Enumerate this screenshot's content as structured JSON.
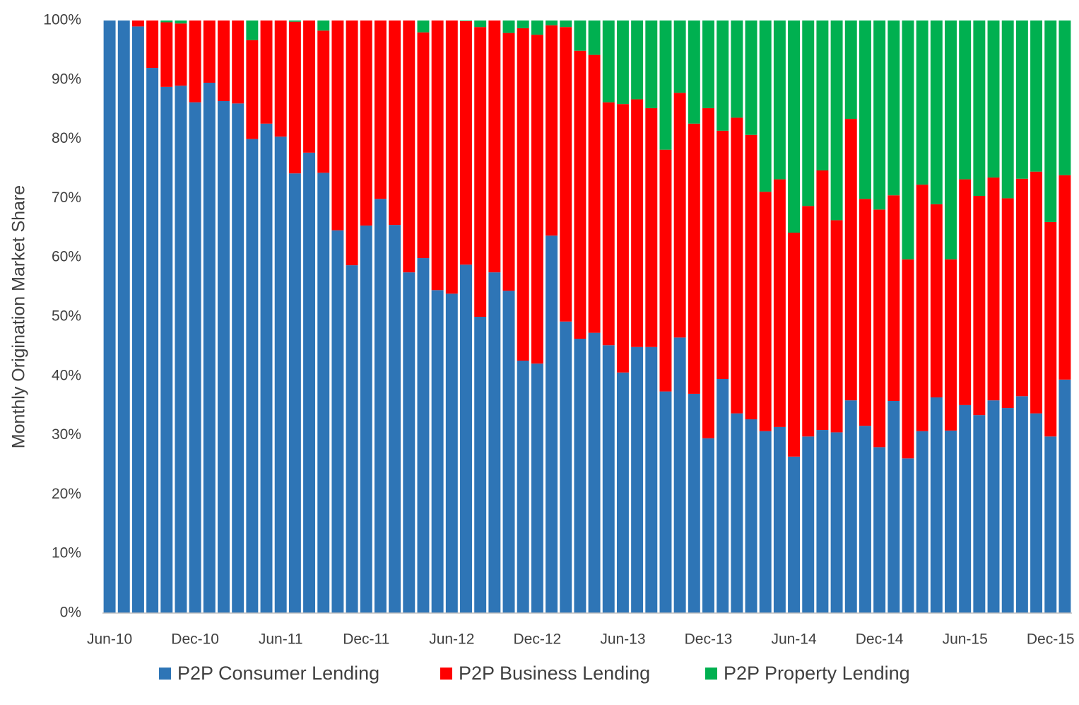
{
  "chart_data": {
    "type": "stacked_bar",
    "y_axis_label": "Monthly Origination Market Share",
    "categories": [
      "Jun-10",
      null,
      null,
      null,
      null,
      null,
      "Dec-10",
      null,
      null,
      null,
      null,
      null,
      "Jun-11",
      null,
      null,
      null,
      null,
      null,
      "Dec-11",
      null,
      null,
      null,
      null,
      null,
      "Jun-12",
      null,
      null,
      null,
      null,
      null,
      "Dec-12",
      null,
      null,
      null,
      null,
      null,
      "Jun-13",
      null,
      null,
      null,
      null,
      null,
      "Dec-13",
      null,
      null,
      null,
      null,
      null,
      "Jun-14",
      null,
      null,
      null,
      null,
      null,
      "Dec-14",
      null,
      null,
      null,
      null,
      null,
      "Jun-15",
      null,
      null,
      null,
      null,
      null,
      "Dec-15",
      null
    ],
    "series": [
      {
        "name": "P2P Consumer Lending",
        "color": "#2e75b6",
        "values": [
          100,
          100,
          99,
          92,
          88.8,
          89,
          86.2,
          89.5,
          86.4,
          86,
          80,
          82.6,
          80.4,
          74.2,
          77.7,
          74.3,
          64.6,
          58.7,
          65.4,
          69.9,
          65.5,
          57.5,
          59.9,
          54.5,
          53.9,
          58.8,
          50,
          57.5,
          54.4,
          42.6,
          42.1,
          63.7,
          49.2,
          46.3,
          47.3,
          45.2,
          40.6,
          44.9,
          44.9,
          37.4,
          46.5,
          37,
          29.5,
          39.5,
          33.7,
          32.7,
          30.7,
          31.4,
          26.4,
          29.8,
          30.9,
          30.5,
          35.9,
          31.6,
          28,
          35.8,
          26.1,
          30.7,
          36.4,
          30.8,
          35.1,
          33.4,
          35.9,
          34.6,
          36.6,
          33.7,
          29.8,
          39.4
        ]
      },
      {
        "name": "P2P Business Lending",
        "color": "#ff0000",
        "values": [
          0,
          0,
          1,
          8,
          10.9,
          10.5,
          13.8,
          10.5,
          13.6,
          14,
          16.7,
          17.4,
          19.6,
          25.6,
          22.3,
          24,
          35.4,
          41.3,
          34.6,
          30.1,
          34.5,
          42.5,
          38.1,
          45.5,
          46.1,
          41.1,
          48.9,
          42.5,
          43.5,
          56.1,
          55.5,
          35.5,
          49.7,
          48.6,
          46.9,
          41,
          45.3,
          41.8,
          40.3,
          40.8,
          41.3,
          45.6,
          55.7,
          41.9,
          49.9,
          48,
          40.4,
          41.8,
          37.8,
          38.9,
          43.8,
          35.8,
          47.5,
          38.3,
          40.1,
          34.7,
          33.6,
          41.6,
          32.6,
          28.9,
          38.1,
          37,
          37.6,
          35.4,
          36.7,
          40.8,
          36.2,
          34.5
        ]
      },
      {
        "name": "P2P Property Lending",
        "color": "#00b050",
        "values": [
          0,
          0,
          0,
          0,
          0.3,
          0.5,
          0,
          0,
          0,
          0,
          3.3,
          0,
          0,
          0.2,
          0,
          1.7,
          0,
          0,
          0,
          0,
          0,
          0,
          2,
          0,
          0,
          0.1,
          1.1,
          0,
          2.1,
          1.3,
          2.4,
          0.8,
          1.1,
          5.1,
          5.8,
          13.8,
          14.1,
          13.3,
          14.8,
          21.8,
          12.2,
          17.4,
          14.8,
          18.6,
          16.4,
          19.3,
          28.9,
          26.8,
          35.8,
          31.3,
          25.3,
          33.7,
          16.6,
          30.1,
          31.9,
          29.5,
          40.3,
          27.7,
          31,
          40.3,
          26.8,
          29.6,
          26.5,
          30,
          26.7,
          25.5,
          34,
          26.1
        ]
      }
    ],
    "ylim": [
      0,
      100
    ],
    "yticks": [
      {
        "value": 0,
        "label": "0%"
      },
      {
        "value": 10,
        "label": "10%"
      },
      {
        "value": 20,
        "label": "20%"
      },
      {
        "value": 30,
        "label": "30%"
      },
      {
        "value": 40,
        "label": "40%"
      },
      {
        "value": 50,
        "label": "50%"
      },
      {
        "value": 60,
        "label": "60%"
      },
      {
        "value": 70,
        "label": "70%"
      },
      {
        "value": 80,
        "label": "80%"
      },
      {
        "value": 90,
        "label": "90%"
      },
      {
        "value": 100,
        "label": "100%"
      }
    ],
    "legend": "bottom"
  }
}
